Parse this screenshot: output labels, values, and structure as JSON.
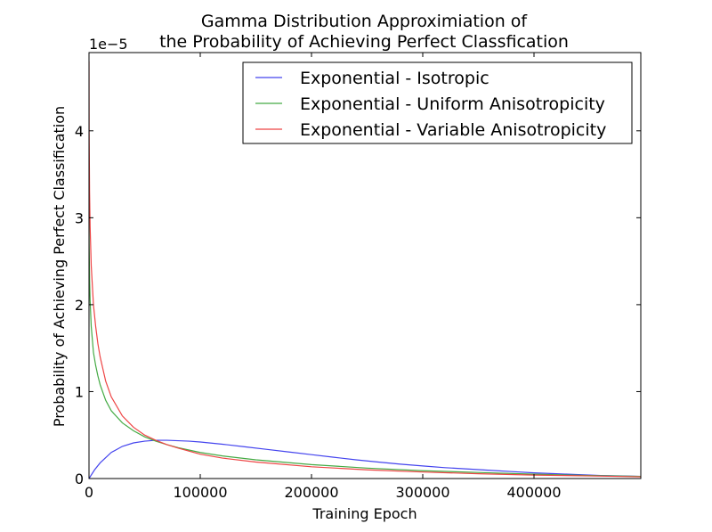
{
  "chart_data": {
    "type": "line",
    "title_lines": [
      "Gamma Distribution Approximiation of",
      "the Probability of Achieving Perfect Classfication"
    ],
    "xlabel": "Training Epoch",
    "ylabel": "Probability of Achieving Perfect Classification",
    "y_offset_label": "1e−5",
    "xlim": [
      0,
      496000
    ],
    "ylim": [
      0,
      4.9e-05
    ],
    "x_ticks": [
      0,
      100000,
      200000,
      300000,
      400000
    ],
    "x_tick_labels": [
      "0",
      "100000",
      "200000",
      "300000",
      "400000"
    ],
    "y_ticks": [
      0,
      1e-05,
      2e-05,
      3e-05,
      4e-05
    ],
    "y_tick_labels": [
      "0",
      "1",
      "2",
      "3",
      "4"
    ],
    "grid": false,
    "legend_position": "top-right",
    "series": [
      {
        "name": "Exponential - Isotropic",
        "color": "#4444ee",
        "x": [
          0,
          5000,
          10000,
          20000,
          30000,
          40000,
          50000,
          60000,
          70000,
          80000,
          90000,
          100000,
          120000,
          140000,
          160000,
          180000,
          200000,
          220000,
          240000,
          260000,
          280000,
          300000,
          320000,
          340000,
          360000,
          380000,
          400000,
          420000,
          440000,
          460000,
          480000,
          496000
        ],
        "y": [
          0,
          1e-06,
          1.8e-06,
          3e-06,
          3.7e-06,
          4.1e-06,
          4.3e-06,
          4.4e-06,
          4.4e-06,
          4.35e-06,
          4.3e-06,
          4.2e-06,
          3.95e-06,
          3.65e-06,
          3.35e-06,
          3.05e-06,
          2.75e-06,
          2.45e-06,
          2.15e-06,
          1.9e-06,
          1.65e-06,
          1.45e-06,
          1.25e-06,
          1.1e-06,
          9.5e-07,
          8e-07,
          6.5e-07,
          5.5e-07,
          4.5e-07,
          3.5e-07,
          3e-07,
          2.5e-07
        ]
      },
      {
        "name": "Exponential - Uniform Anisotropicity",
        "color": "#44aa44",
        "x": [
          100,
          500,
          1000,
          2000,
          4000,
          6000,
          8000,
          10000,
          15000,
          20000,
          30000,
          40000,
          50000,
          60000,
          70000,
          80000,
          100000,
          120000,
          150000,
          200000,
          250000,
          300000,
          350000,
          400000,
          450000,
          496000
        ],
        "y": [
          2.7e-05,
          2.3e-05,
          2.05e-05,
          1.75e-05,
          1.45e-05,
          1.3e-05,
          1.18e-05,
          1.08e-05,
          9e-06,
          7.8e-06,
          6.4e-06,
          5.5e-06,
          4.8e-06,
          4.3e-06,
          3.9e-06,
          3.55e-06,
          3e-06,
          2.6e-06,
          2.15e-06,
          1.6e-06,
          1.2e-06,
          9e-07,
          7e-07,
          5e-07,
          3.5e-07,
          2.5e-07
        ]
      },
      {
        "name": "Exponential - Variable Anisotropicity",
        "color": "#ee4444",
        "x": [
          100,
          500,
          1000,
          2000,
          4000,
          6000,
          8000,
          10000,
          15000,
          20000,
          30000,
          40000,
          50000,
          60000,
          70000,
          80000,
          100000,
          120000,
          150000,
          200000,
          250000,
          300000,
          350000,
          400000,
          450000,
          496000
        ],
        "y": [
          4e-05,
          3.3e-05,
          2.9e-05,
          2.45e-05,
          2e-05,
          1.75e-05,
          1.55e-05,
          1.4e-05,
          1.12e-05,
          9.4e-06,
          7.2e-06,
          5.9e-06,
          5e-06,
          4.4e-06,
          3.9e-06,
          3.5e-06,
          2.8e-06,
          2.35e-06,
          1.9e-06,
          1.35e-06,
          1e-06,
          7.5e-07,
          5.5e-07,
          4e-07,
          3e-07,
          2e-07
        ]
      }
    ]
  }
}
